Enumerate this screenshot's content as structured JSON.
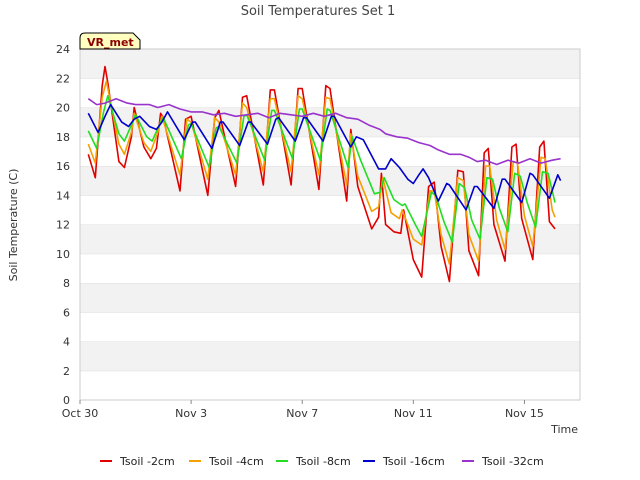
{
  "chart_data": {
    "type": "line",
    "title": "Soil Temperatures Set 1",
    "xlabel": "Time",
    "ylabel": "Soil Temperature (C)",
    "badge": "VR_met",
    "ylim": [
      0,
      24
    ],
    "yticks": [
      0,
      2,
      4,
      6,
      8,
      10,
      12,
      14,
      16,
      18,
      20,
      22,
      24
    ],
    "xlim": [
      0,
      18
    ],
    "xticks": [
      {
        "value": 0,
        "label": "Oct 30"
      },
      {
        "value": 4,
        "label": "Nov 3"
      },
      {
        "value": 8,
        "label": "Nov 7"
      },
      {
        "value": 12,
        "label": "Nov 11"
      },
      {
        "value": 16,
        "label": "Nov 15"
      }
    ],
    "grid": "horizontal bands",
    "legend_position": "bottom",
    "colors": {
      "Tsoil -2cm": "#e00000",
      "Tsoil -4cm": "#f5a000",
      "Tsoil -8cm": "#22dd22",
      "Tsoil -16cm": "#0000cc",
      "Tsoil -32cm": "#9933cc"
    },
    "series": [
      {
        "name": "Tsoil -2cm",
        "points": [
          [
            0.3,
            16.8
          ],
          [
            0.55,
            15.2
          ],
          [
            0.8,
            21.5
          ],
          [
            0.9,
            22.8
          ],
          [
            1.0,
            21.7
          ],
          [
            1.4,
            16.3
          ],
          [
            1.6,
            15.9
          ],
          [
            1.85,
            18.0
          ],
          [
            1.95,
            20.0
          ],
          [
            2.3,
            17.3
          ],
          [
            2.55,
            16.5
          ],
          [
            2.75,
            17.2
          ],
          [
            2.9,
            19.6
          ],
          [
            3.0,
            19.3
          ],
          [
            3.6,
            14.3
          ],
          [
            3.8,
            19.2
          ],
          [
            4.0,
            19.4
          ],
          [
            4.6,
            14.0
          ],
          [
            4.85,
            19.3
          ],
          [
            5.0,
            19.8
          ],
          [
            5.6,
            14.6
          ],
          [
            5.85,
            20.7
          ],
          [
            6.0,
            20.8
          ],
          [
            6.6,
            14.7
          ],
          [
            6.85,
            21.2
          ],
          [
            7.0,
            21.2
          ],
          [
            7.6,
            14.7
          ],
          [
            7.85,
            21.3
          ],
          [
            8.0,
            21.3
          ],
          [
            8.6,
            14.4
          ],
          [
            8.85,
            21.5
          ],
          [
            9.0,
            21.3
          ],
          [
            9.6,
            13.6
          ],
          [
            9.75,
            18.5
          ],
          [
            10.0,
            14.6
          ],
          [
            10.5,
            11.7
          ],
          [
            10.75,
            12.5
          ],
          [
            10.85,
            15.5
          ],
          [
            11.0,
            12.0
          ],
          [
            11.3,
            11.5
          ],
          [
            11.55,
            11.4
          ],
          [
            11.65,
            13.0
          ],
          [
            12.0,
            9.6
          ],
          [
            12.3,
            8.4
          ],
          [
            12.55,
            14.6
          ],
          [
            12.75,
            14.9
          ],
          [
            13.0,
            10.5
          ],
          [
            13.3,
            8.1
          ],
          [
            13.6,
            15.7
          ],
          [
            13.8,
            15.6
          ],
          [
            14.0,
            10.2
          ],
          [
            14.35,
            8.5
          ],
          [
            14.55,
            16.9
          ],
          [
            14.7,
            17.2
          ],
          [
            14.9,
            12.0
          ],
          [
            15.3,
            9.5
          ],
          [
            15.55,
            17.3
          ],
          [
            15.7,
            17.5
          ],
          [
            15.9,
            12.4
          ],
          [
            16.3,
            9.6
          ],
          [
            16.55,
            17.3
          ],
          [
            16.7,
            17.7
          ],
          [
            16.9,
            12.2
          ],
          [
            17.1,
            11.7
          ]
        ]
      },
      {
        "name": "Tsoil -4cm",
        "points": [
          [
            0.3,
            17.5
          ],
          [
            0.55,
            16.2
          ],
          [
            0.8,
            20.7
          ],
          [
            0.95,
            21.8
          ],
          [
            1.4,
            17.5
          ],
          [
            1.6,
            16.8
          ],
          [
            1.85,
            18.3
          ],
          [
            1.95,
            19.6
          ],
          [
            2.3,
            17.6
          ],
          [
            2.55,
            17.0
          ],
          [
            2.8,
            18.3
          ],
          [
            2.95,
            19.4
          ],
          [
            3.6,
            15.4
          ],
          [
            3.85,
            19.2
          ],
          [
            4.0,
            19.0
          ],
          [
            4.6,
            15.1
          ],
          [
            4.85,
            19.3
          ],
          [
            5.0,
            19.0
          ],
          [
            5.6,
            15.4
          ],
          [
            5.85,
            20.3
          ],
          [
            6.0,
            20.0
          ],
          [
            6.6,
            15.6
          ],
          [
            6.85,
            20.6
          ],
          [
            7.0,
            20.6
          ],
          [
            7.6,
            15.6
          ],
          [
            7.85,
            20.8
          ],
          [
            8.0,
            20.6
          ],
          [
            8.6,
            15.4
          ],
          [
            8.85,
            20.7
          ],
          [
            9.0,
            20.6
          ],
          [
            9.6,
            14.7
          ],
          [
            9.75,
            18.2
          ],
          [
            10.0,
            15.3
          ],
          [
            10.5,
            12.9
          ],
          [
            10.75,
            13.2
          ],
          [
            10.9,
            15.2
          ],
          [
            11.2,
            12.8
          ],
          [
            11.5,
            12.4
          ],
          [
            11.6,
            13.0
          ],
          [
            12.0,
            11.0
          ],
          [
            12.3,
            10.6
          ],
          [
            12.6,
            14.3
          ],
          [
            12.75,
            14.3
          ],
          [
            13.0,
            11.3
          ],
          [
            13.3,
            9.3
          ],
          [
            13.6,
            15.2
          ],
          [
            13.8,
            15.0
          ],
          [
            14.0,
            11.3
          ],
          [
            14.35,
            9.5
          ],
          [
            14.6,
            16.0
          ],
          [
            14.75,
            16.0
          ],
          [
            15.0,
            12.3
          ],
          [
            15.3,
            10.3
          ],
          [
            15.6,
            16.3
          ],
          [
            15.75,
            16.2
          ],
          [
            16.0,
            12.6
          ],
          [
            16.3,
            10.5
          ],
          [
            16.6,
            16.6
          ],
          [
            16.75,
            16.5
          ],
          [
            17.0,
            13.0
          ],
          [
            17.1,
            12.5
          ]
        ]
      },
      {
        "name": "Tsoil -8cm",
        "points": [
          [
            0.3,
            18.4
          ],
          [
            0.6,
            17.2
          ],
          [
            0.85,
            19.7
          ],
          [
            1.0,
            20.8
          ],
          [
            1.4,
            18.2
          ],
          [
            1.6,
            17.7
          ],
          [
            1.85,
            18.8
          ],
          [
            2.0,
            19.5
          ],
          [
            2.4,
            18.0
          ],
          [
            2.6,
            17.7
          ],
          [
            2.9,
            19.0
          ],
          [
            3.0,
            19.3
          ],
          [
            3.65,
            16.5
          ],
          [
            3.9,
            18.8
          ],
          [
            4.0,
            18.9
          ],
          [
            4.65,
            15.9
          ],
          [
            4.9,
            18.6
          ],
          [
            5.0,
            18.7
          ],
          [
            5.65,
            16.2
          ],
          [
            5.9,
            19.4
          ],
          [
            6.0,
            19.5
          ],
          [
            6.65,
            16.4
          ],
          [
            6.9,
            19.8
          ],
          [
            7.0,
            19.8
          ],
          [
            7.65,
            16.5
          ],
          [
            7.9,
            19.9
          ],
          [
            8.0,
            19.9
          ],
          [
            8.65,
            16.4
          ],
          [
            8.9,
            19.9
          ],
          [
            9.0,
            19.8
          ],
          [
            9.65,
            15.9
          ],
          [
            9.8,
            18.0
          ],
          [
            10.1,
            16.4
          ],
          [
            10.6,
            14.1
          ],
          [
            10.8,
            14.2
          ],
          [
            10.95,
            15.2
          ],
          [
            11.3,
            13.7
          ],
          [
            11.6,
            13.3
          ],
          [
            11.7,
            13.4
          ],
          [
            12.1,
            11.9
          ],
          [
            12.3,
            11.2
          ],
          [
            12.65,
            14.2
          ],
          [
            12.8,
            14.0
          ],
          [
            13.1,
            12.2
          ],
          [
            13.4,
            10.8
          ],
          [
            13.65,
            14.8
          ],
          [
            13.85,
            14.5
          ],
          [
            14.1,
            12.3
          ],
          [
            14.4,
            11.0
          ],
          [
            14.65,
            15.2
          ],
          [
            14.85,
            15.1
          ],
          [
            15.1,
            13.1
          ],
          [
            15.4,
            11.5
          ],
          [
            15.65,
            15.5
          ],
          [
            15.85,
            15.3
          ],
          [
            16.1,
            13.5
          ],
          [
            16.4,
            11.8
          ],
          [
            16.65,
            15.6
          ],
          [
            16.85,
            15.5
          ],
          [
            17.1,
            13.5
          ]
        ]
      },
      {
        "name": "Tsoil -16cm",
        "points": [
          [
            0.3,
            19.6
          ],
          [
            0.65,
            18.3
          ],
          [
            0.9,
            19.4
          ],
          [
            1.1,
            20.2
          ],
          [
            1.5,
            19.0
          ],
          [
            1.75,
            18.7
          ],
          [
            1.95,
            19.2
          ],
          [
            2.15,
            19.4
          ],
          [
            2.5,
            18.7
          ],
          [
            2.75,
            18.5
          ],
          [
            2.95,
            19.0
          ],
          [
            3.15,
            19.7
          ],
          [
            3.75,
            17.8
          ],
          [
            4.05,
            19.0
          ],
          [
            4.15,
            19.0
          ],
          [
            4.75,
            17.2
          ],
          [
            5.05,
            19.0
          ],
          [
            5.15,
            19.0
          ],
          [
            5.75,
            17.4
          ],
          [
            6.05,
            19.0
          ],
          [
            6.15,
            19.0
          ],
          [
            6.75,
            17.5
          ],
          [
            7.05,
            19.2
          ],
          [
            7.15,
            19.3
          ],
          [
            7.75,
            17.7
          ],
          [
            8.05,
            19.3
          ],
          [
            8.15,
            19.3
          ],
          [
            8.75,
            17.7
          ],
          [
            9.05,
            19.4
          ],
          [
            9.15,
            19.4
          ],
          [
            9.75,
            17.3
          ],
          [
            9.95,
            18.0
          ],
          [
            10.2,
            17.8
          ],
          [
            10.75,
            15.8
          ],
          [
            11.0,
            15.8
          ],
          [
            11.2,
            16.5
          ],
          [
            11.5,
            15.9
          ],
          [
            11.8,
            15.1
          ],
          [
            12.0,
            14.8
          ],
          [
            12.2,
            15.4
          ],
          [
            12.35,
            15.8
          ],
          [
            12.55,
            15.2
          ],
          [
            12.9,
            13.6
          ],
          [
            13.2,
            14.8
          ],
          [
            13.3,
            14.7
          ],
          [
            13.9,
            13.0
          ],
          [
            14.2,
            14.6
          ],
          [
            14.3,
            14.6
          ],
          [
            14.9,
            13.1
          ],
          [
            15.2,
            15.1
          ],
          [
            15.3,
            15.1
          ],
          [
            15.9,
            13.5
          ],
          [
            16.2,
            15.5
          ],
          [
            16.3,
            15.4
          ],
          [
            16.9,
            13.8
          ],
          [
            17.2,
            15.4
          ],
          [
            17.3,
            15.0
          ]
        ]
      },
      {
        "name": "Tsoil -32cm",
        "points": [
          [
            0.3,
            20.6
          ],
          [
            0.6,
            20.2
          ],
          [
            0.9,
            20.3
          ],
          [
            1.3,
            20.6
          ],
          [
            1.7,
            20.3
          ],
          [
            2.0,
            20.2
          ],
          [
            2.5,
            20.2
          ],
          [
            2.8,
            20.0
          ],
          [
            3.2,
            20.2
          ],
          [
            3.6,
            19.9
          ],
          [
            4.0,
            19.7
          ],
          [
            4.4,
            19.7
          ],
          [
            4.8,
            19.5
          ],
          [
            5.2,
            19.6
          ],
          [
            5.6,
            19.4
          ],
          [
            6.0,
            19.5
          ],
          [
            6.4,
            19.6
          ],
          [
            6.8,
            19.3
          ],
          [
            7.2,
            19.6
          ],
          [
            7.6,
            19.5
          ],
          [
            8.0,
            19.4
          ],
          [
            8.4,
            19.6
          ],
          [
            8.8,
            19.4
          ],
          [
            9.2,
            19.6
          ],
          [
            9.6,
            19.3
          ],
          [
            10.0,
            19.2
          ],
          [
            10.4,
            18.8
          ],
          [
            10.8,
            18.5
          ],
          [
            11.0,
            18.2
          ],
          [
            11.4,
            18.0
          ],
          [
            11.8,
            17.9
          ],
          [
            12.2,
            17.6
          ],
          [
            12.6,
            17.4
          ],
          [
            12.9,
            17.1
          ],
          [
            13.3,
            16.8
          ],
          [
            13.7,
            16.8
          ],
          [
            14.0,
            16.6
          ],
          [
            14.3,
            16.3
          ],
          [
            14.6,
            16.4
          ],
          [
            15.0,
            16.1
          ],
          [
            15.4,
            16.4
          ],
          [
            15.8,
            16.2
          ],
          [
            16.2,
            16.5
          ],
          [
            16.6,
            16.2
          ],
          [
            17.0,
            16.4
          ],
          [
            17.3,
            16.5
          ]
        ]
      }
    ]
  }
}
